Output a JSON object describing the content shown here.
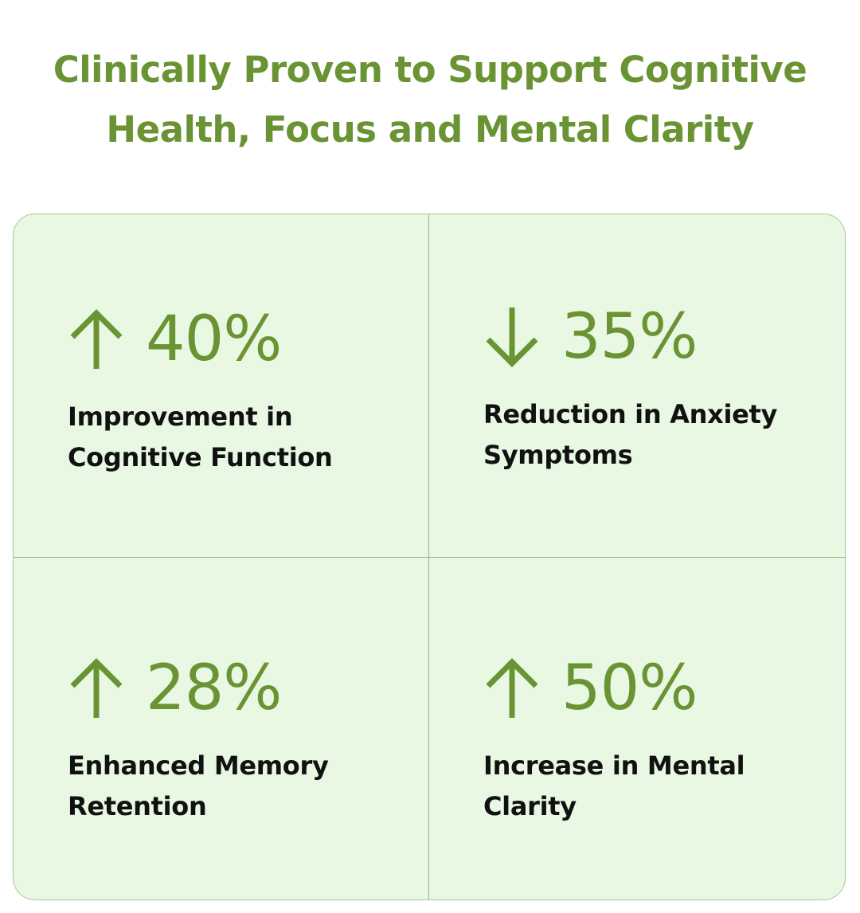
{
  "heading": {
    "line1": "Clinically Proven to Support Cognitive",
    "line2": "Health, Focus and Mental Clarity"
  },
  "colors": {
    "accent": "#6a9434",
    "panel_background": "#e8f8e3",
    "divider": "#8db57a",
    "text": "#111111"
  },
  "stats": [
    {
      "direction": "up",
      "icon": "arrow-up-icon",
      "value": "40%",
      "desc_line1": "Improvement in",
      "desc_line2": "Cognitive Function"
    },
    {
      "direction": "down",
      "icon": "arrow-down-icon",
      "value": "35%",
      "desc_line1": "Reduction in Anxiety",
      "desc_line2": "Symptoms"
    },
    {
      "direction": "up",
      "icon": "arrow-up-icon",
      "value": "28%",
      "desc_line1": "Enhanced Memory",
      "desc_line2": "Retention"
    },
    {
      "direction": "up",
      "icon": "arrow-up-icon",
      "value": "50%",
      "desc_line1": "Increase in Mental",
      "desc_line2": "Clarity"
    }
  ]
}
